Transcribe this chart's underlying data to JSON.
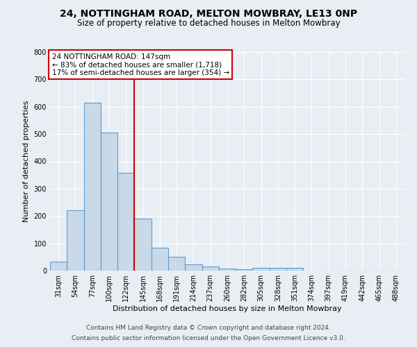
{
  "title": "24, NOTTINGHAM ROAD, MELTON MOWBRAY, LE13 0NP",
  "subtitle": "Size of property relative to detached houses in Melton Mowbray",
  "xlabel": "Distribution of detached houses by size in Melton Mowbray",
  "ylabel": "Number of detached properties",
  "categories": [
    "31sqm",
    "54sqm",
    "77sqm",
    "100sqm",
    "122sqm",
    "145sqm",
    "168sqm",
    "191sqm",
    "214sqm",
    "237sqm",
    "260sqm",
    "282sqm",
    "305sqm",
    "328sqm",
    "351sqm",
    "374sqm",
    "397sqm",
    "419sqm",
    "442sqm",
    "465sqm",
    "488sqm"
  ],
  "values": [
    33,
    220,
    615,
    505,
    358,
    190,
    85,
    52,
    22,
    14,
    8,
    6,
    9,
    9,
    9,
    0,
    0,
    0,
    0,
    0,
    0
  ],
  "bar_color": "#c9d9e8",
  "bar_edge_color": "#5b9bd5",
  "vline_color": "#cc0000",
  "vline_x": 4.5,
  "ylim": [
    0,
    800
  ],
  "yticks": [
    0,
    100,
    200,
    300,
    400,
    500,
    600,
    700,
    800
  ],
  "annotation_title": "24 NOTTINGHAM ROAD: 147sqm",
  "annotation_line1": "← 83% of detached houses are smaller (1,718)",
  "annotation_line2": "17% of semi-detached houses are larger (354) →",
  "annotation_box_color": "#ffffff",
  "annotation_box_edge": "#cc0000",
  "footer1": "Contains HM Land Registry data © Crown copyright and database right 2024.",
  "footer2": "Contains public sector information licensed under the Open Government Licence v3.0.",
  "background_color": "#e8eef4",
  "plot_bg_color": "#e8eef4",
  "title_fontsize": 10,
  "subtitle_fontsize": 8.5,
  "axis_label_fontsize": 8,
  "tick_fontsize": 7,
  "annotation_fontsize": 7.5,
  "footer_fontsize": 6.5
}
